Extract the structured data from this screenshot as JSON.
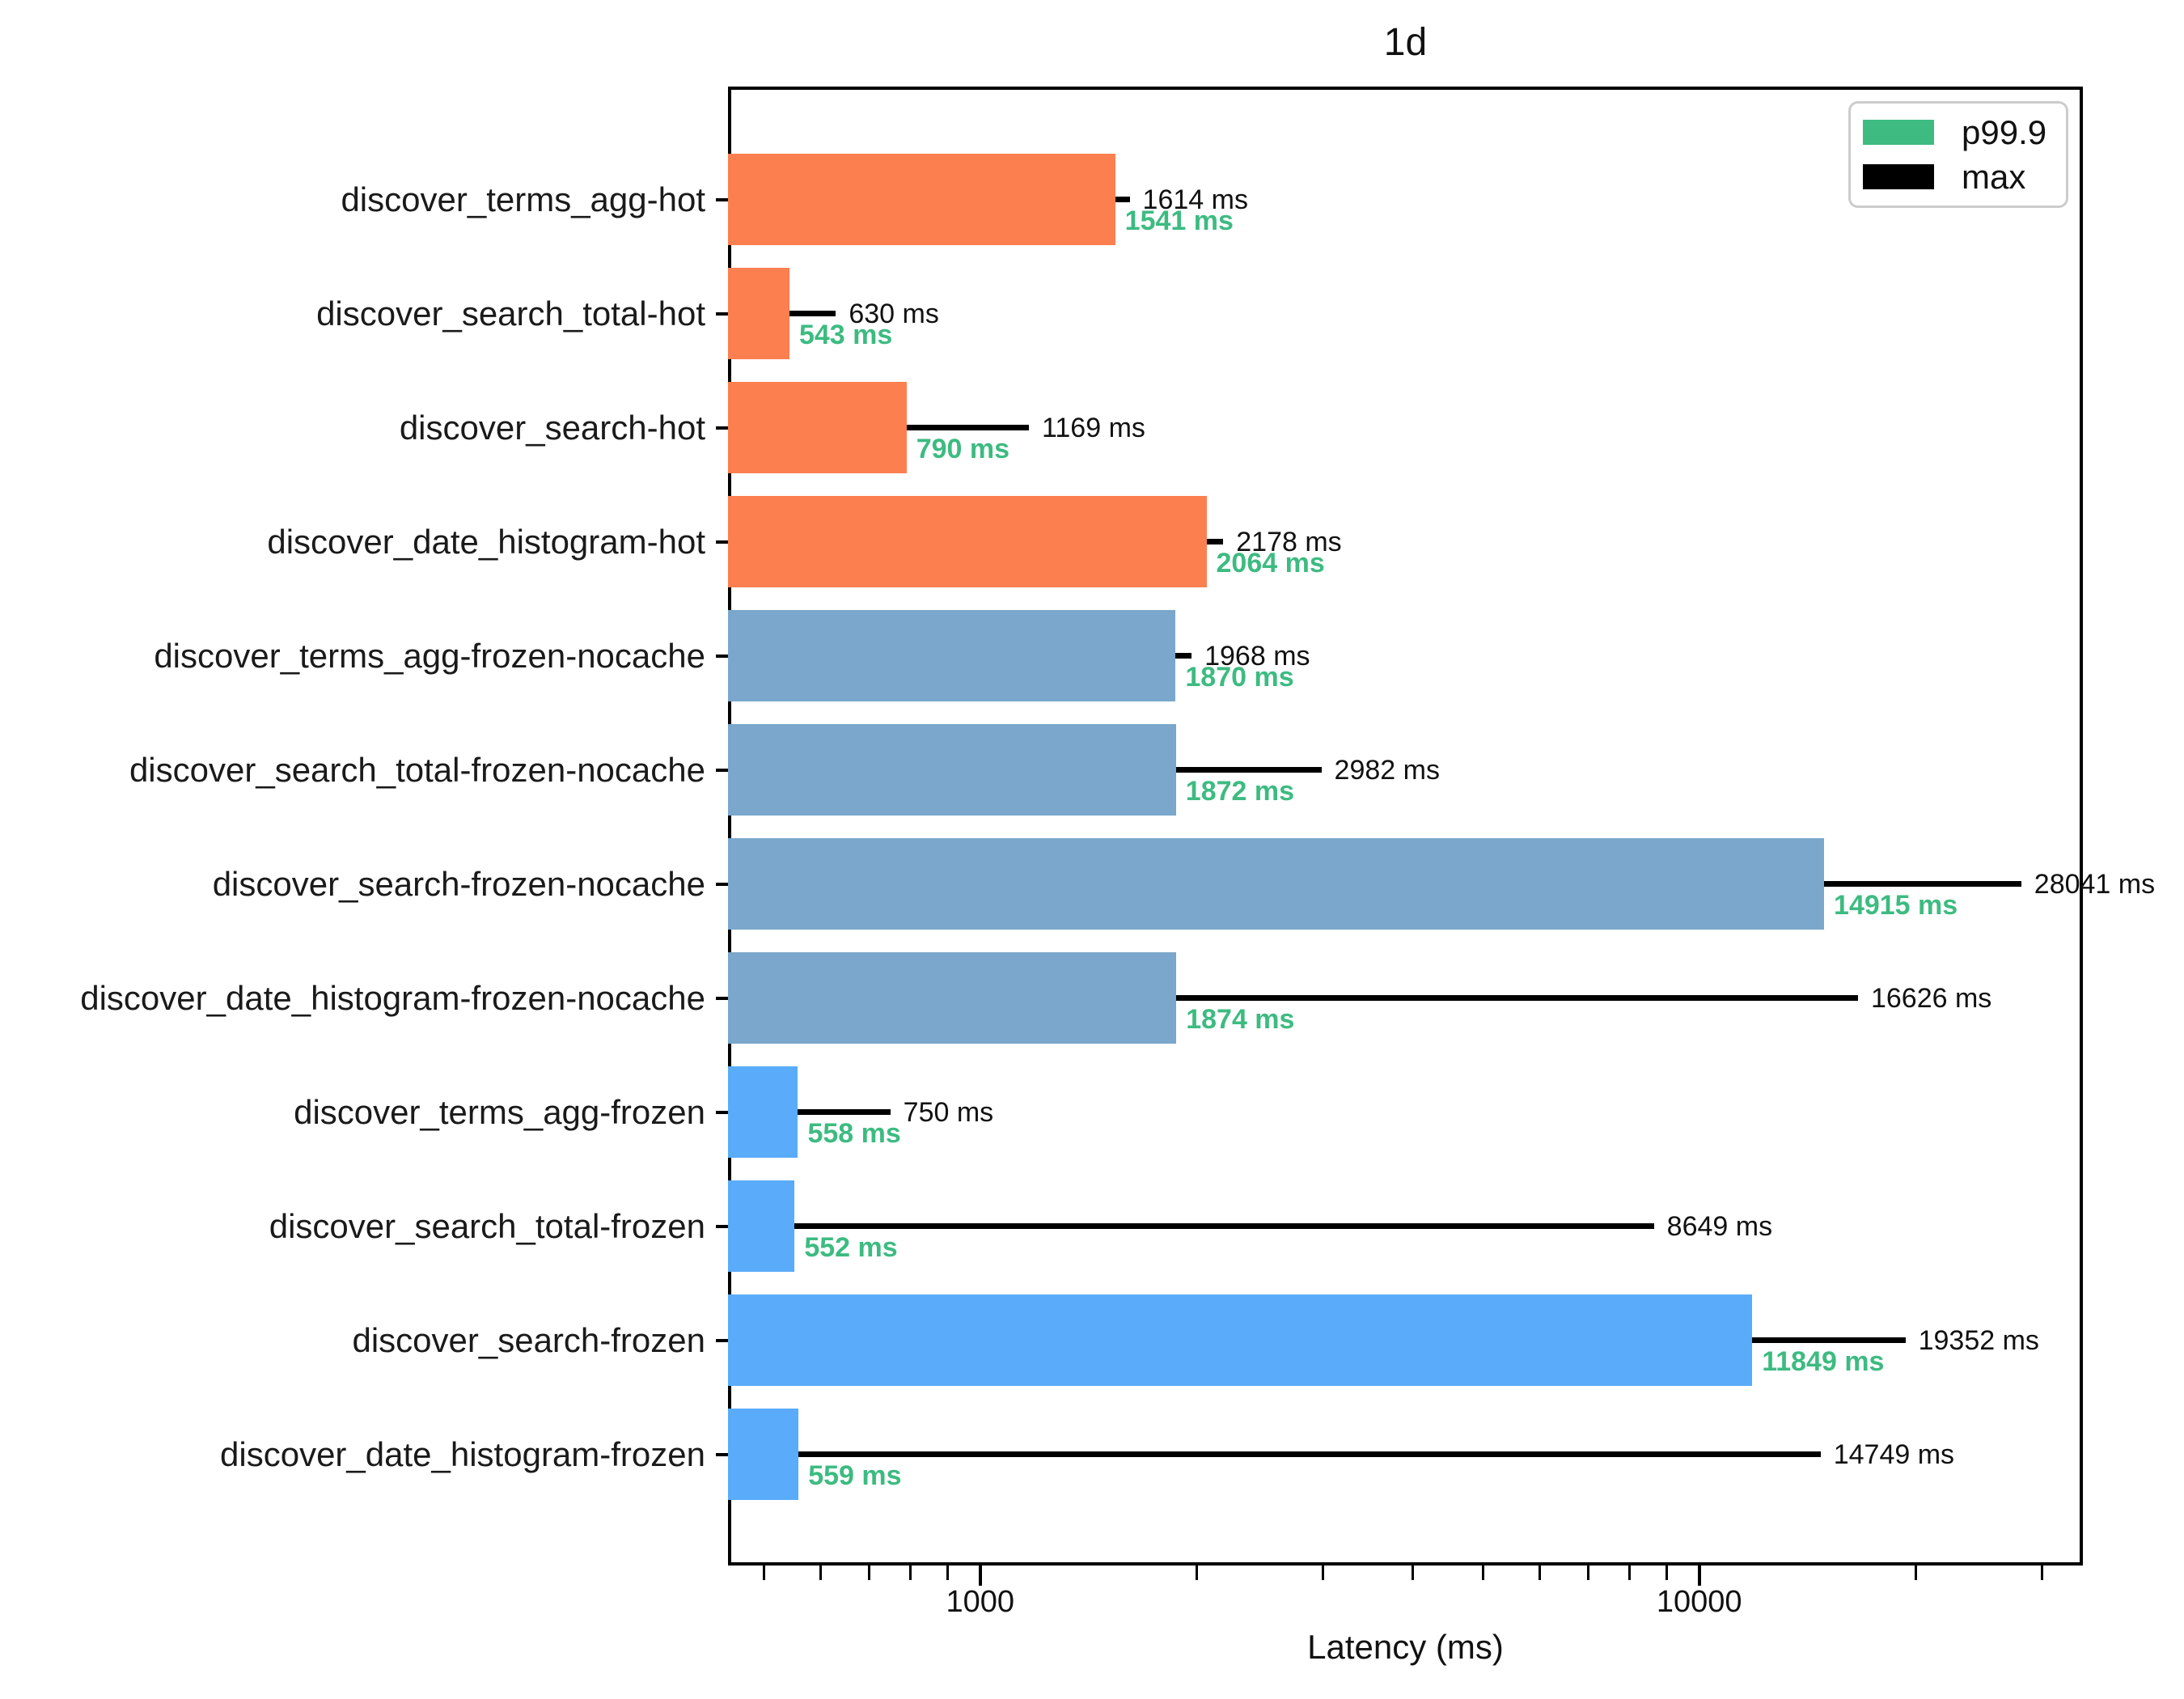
{
  "title": "1d",
  "axes": {
    "xlabel": "Latency (ms)"
  },
  "legend": {
    "position": "upper right",
    "items": [
      {
        "label": "p99.9",
        "color": "#3dbb81"
      },
      {
        "label": "max",
        "color": "#000000"
      }
    ]
  },
  "colors": {
    "hot_bar": "#fc7f50",
    "frozen_nocache_bar": "#7aa7cb",
    "frozen_bar": "#5aacfa",
    "p99_text": "#3dbb81",
    "max_text": "#111111",
    "axis": "#000000"
  },
  "chart_data": {
    "type": "bar",
    "orientation": "horizontal",
    "title": "1d",
    "xlabel": "Latency (ms)",
    "x_scale": "log",
    "xlim": [
      446,
      34160
    ],
    "grid": false,
    "unit": "ms",
    "x_major_ticks": [
      1000,
      10000
    ],
    "x_major_tick_labels": [
      "1000",
      "10000"
    ],
    "x_minor_ticks": [
      500,
      600,
      700,
      800,
      900,
      2000,
      3000,
      4000,
      5000,
      6000,
      7000,
      8000,
      9000,
      20000,
      30000
    ],
    "categories": [
      "discover_terms_agg-hot",
      "discover_search_total-hot",
      "discover_search-hot",
      "discover_date_histogram-hot",
      "discover_terms_agg-frozen-nocache",
      "discover_search_total-frozen-nocache",
      "discover_search-frozen-nocache",
      "discover_date_histogram-frozen-nocache",
      "discover_terms_agg-frozen",
      "discover_search_total-frozen",
      "discover_search-frozen",
      "discover_date_histogram-frozen"
    ],
    "series": [
      {
        "name": "p99.9",
        "values": [
          1541,
          543,
          790,
          2064,
          1870,
          1872,
          14915,
          1874,
          558,
          552,
          11849,
          559
        ]
      },
      {
        "name": "max",
        "values": [
          1614,
          630,
          1169,
          2178,
          1968,
          2982,
          28041,
          16626,
          750,
          8649,
          19352,
          14749
        ]
      }
    ],
    "bar_colors": [
      "#fc7f50",
      "#fc7f50",
      "#fc7f50",
      "#fc7f50",
      "#7aa7cb",
      "#7aa7cb",
      "#7aa7cb",
      "#7aa7cb",
      "#5aacfa",
      "#5aacfa",
      "#5aacfa",
      "#5aacfa"
    ],
    "legend_position": "upper right"
  }
}
